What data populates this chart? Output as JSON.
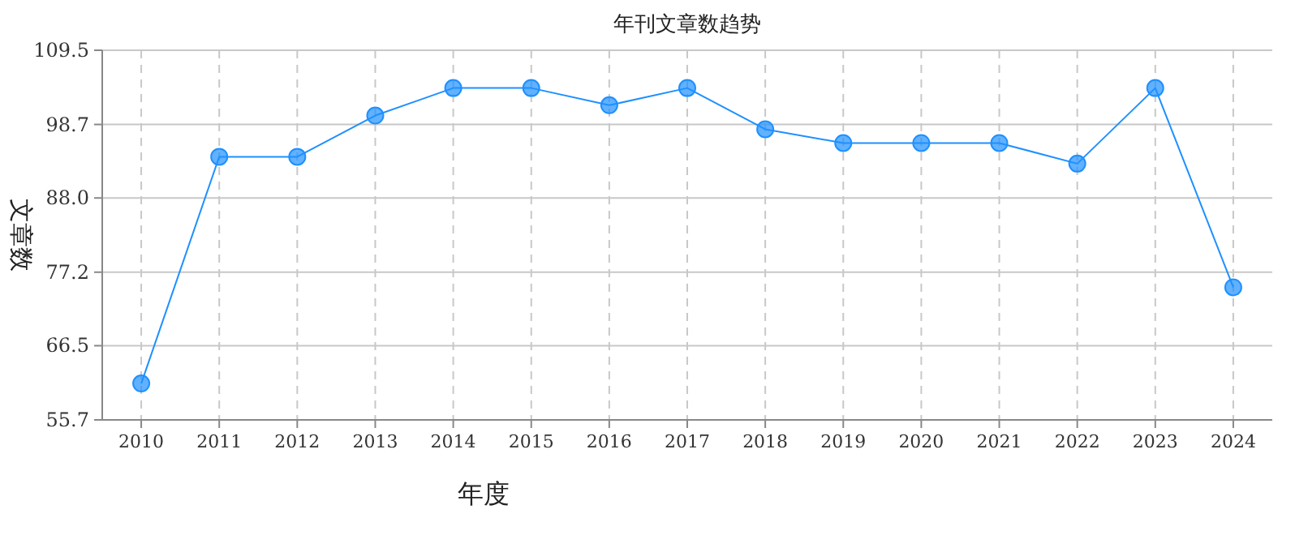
{
  "chart_data": {
    "type": "line",
    "title": "年刊文章数趋势",
    "xlabel": "年度",
    "ylabel": "文章数",
    "categories": [
      "2010",
      "2011",
      "2012",
      "2013",
      "2014",
      "2015",
      "2016",
      "2017",
      "2018",
      "2019",
      "2020",
      "2021",
      "2022",
      "2023",
      "2024"
    ],
    "series": [
      {
        "color": "#1e90ff",
        "values": [
          61,
          94,
          94,
          100,
          104,
          104,
          101.5,
          104,
          98,
          96,
          96,
          96,
          93,
          104,
          75
        ]
      }
    ],
    "ylim": [
      55.7,
      109.5
    ],
    "yticks": [
      55.7,
      66.5,
      77.2,
      {
        "value": 88,
        "label": "88.0"
      },
      98.7,
      109.5
    ],
    "grid": true,
    "marker": "circle",
    "line_style": "solid"
  }
}
